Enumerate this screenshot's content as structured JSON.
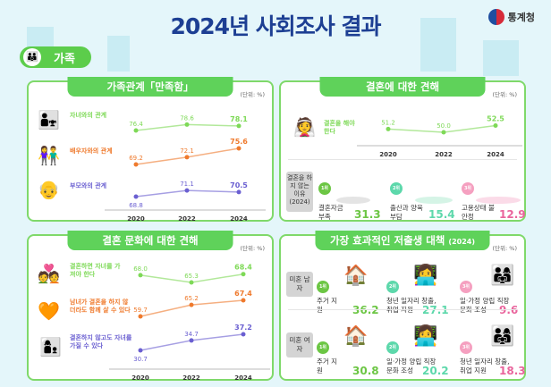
{
  "header": {
    "title": "2024년 사회조사 결과",
    "logo": "통계청",
    "tag": "가족"
  },
  "colors": {
    "green": "#6cc644",
    "orange": "#ef7a2d",
    "purple": "#6a5fd1",
    "mint": "#5dd8ab",
    "pink": "#e9649c",
    "header": "#5fd25a"
  },
  "unit": "(단위: %)",
  "chart_data": [
    {
      "id": "family",
      "type": "line",
      "title": "가족관계「만족함」",
      "categories": [
        "2020",
        "2022",
        "2024"
      ],
      "series": [
        {
          "name": "자녀와의 관계",
          "values": [
            76.4,
            78.6,
            78.1
          ],
          "color": "#7ed957"
        },
        {
          "name": "배우자와의 관계",
          "values": [
            69.2,
            72.1,
            75.6
          ],
          "color": "#ef7a2d"
        },
        {
          "name": "부모와의 관계",
          "values": [
            68.8,
            71.1,
            70.5
          ],
          "color": "#6a5fd1"
        }
      ]
    },
    {
      "id": "marriage",
      "type": "line",
      "title": "결혼에 대한 견해",
      "categories": [
        "2020",
        "2022",
        "2024"
      ],
      "series": [
        {
          "name": "결혼을 해야 한다",
          "values": [
            51.2,
            50.0,
            52.5
          ],
          "color": "#7ed957"
        }
      ]
    },
    {
      "id": "culture",
      "type": "line",
      "title": "결혼 문화에 대한 견해",
      "categories": [
        "2020",
        "2022",
        "2024"
      ],
      "series": [
        {
          "name": "결혼하면 자녀를 가져야 한다",
          "values": [
            68.0,
            65.3,
            68.4
          ],
          "color": "#7ed957"
        },
        {
          "name": "남녀가 결혼을 하지 않더라도 함께 살 수 있다",
          "values": [
            59.7,
            65.2,
            67.4
          ],
          "color": "#ef7a2d"
        },
        {
          "name": "결혼하지 않고도 자녀를 가질 수 있다",
          "values": [
            30.7,
            34.7,
            37.2
          ],
          "color": "#6a5fd1"
        }
      ]
    }
  ],
  "reasons": {
    "label": "결혼을 하지 않는 이유 (2024)",
    "items": [
      {
        "rank": "1위",
        "label": "결혼자금 부족",
        "value": "31.3"
      },
      {
        "rank": "2위",
        "label": "출산과 양육 부담",
        "value": "15.4"
      },
      {
        "rank": "3위",
        "label": "고용상태 불안정",
        "value": "12.9"
      }
    ]
  },
  "policy": {
    "title": "가장 효과적인 저출생 대책",
    "year": "(2024)",
    "groups": [
      {
        "label": "미혼 남자",
        "items": [
          {
            "rank": "1위",
            "label": "주거 지원",
            "value": "36.2"
          },
          {
            "rank": "2위",
            "label": "청년 일자리 창출, 취업 지원",
            "value": "27.1"
          },
          {
            "rank": "3위",
            "label": "일·가정 양립 직장문화 조성",
            "value": "9.6"
          }
        ]
      },
      {
        "label": "미혼 여자",
        "items": [
          {
            "rank": "1위",
            "label": "주거 지원",
            "value": "30.8"
          },
          {
            "rank": "2위",
            "label": "일·가정 양립 직장문화 조성",
            "value": "20.2"
          },
          {
            "rank": "3위",
            "label": "청년 일자리 창출, 취업 지원",
            "value": "18.3"
          }
        ]
      }
    ]
  }
}
